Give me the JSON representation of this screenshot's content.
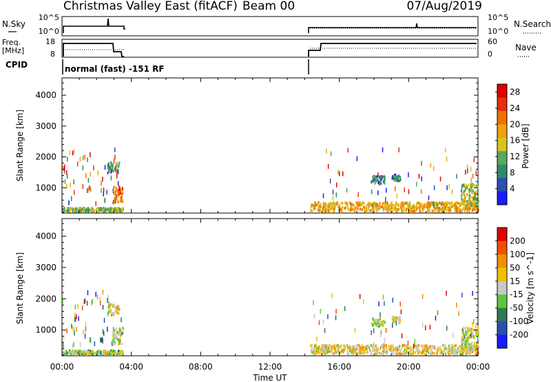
{
  "header": {
    "station": "Christmas Valley East (fitACF)",
    "beam": "Beam 00",
    "date": "07/Aug/2019"
  },
  "panels": {
    "nsky": {
      "label": "N.Sky",
      "ticks": [
        "10^5",
        "10^0"
      ],
      "right_ticks": [
        "10^5",
        "10^0"
      ],
      "right_label": "N.Search"
    },
    "freq": {
      "label_top": "Freq.",
      "label_bottom": "[MHz]",
      "ticks": [
        "18",
        "8"
      ],
      "right_ticks": [
        "60",
        "0"
      ],
      "right_label": "Nave"
    },
    "cpid": {
      "label": "CPID",
      "text": "normal (fast) -151 RF"
    }
  },
  "chart_data": [
    {
      "type": "heatmap",
      "title": "",
      "xlabel": "Time UT",
      "ylabel": "Slant Range [km]",
      "x_ticks": [
        "00:00",
        "04:00",
        "08:00",
        "12:00",
        "16:00",
        "20:00",
        "00:00"
      ],
      "y_ticks": [
        1000,
        2000,
        3000,
        4000
      ],
      "xlim_hours": [
        0,
        24
      ],
      "ylim": [
        180,
        4560
      ],
      "colorbar": {
        "label": "Power [dB]",
        "ticks": [
          "4",
          "8",
          "12",
          "16",
          "20",
          "24",
          "28"
        ],
        "range": [
          0,
          30
        ],
        "colors": [
          "#1a1aff",
          "#2a4fb0",
          "#2e8a6a",
          "#5aa85a",
          "#d8c41a",
          "#f0a010",
          "#f07000",
          "#e63010",
          "#e00000"
        ]
      },
      "data_gap_hours": [
        3.5,
        14.3
      ],
      "clusters": [
        {
          "t": [
            0.0,
            3.5
          ],
          "range": [
            200,
            320
          ],
          "value": 12
        },
        {
          "t": [
            2.9,
            3.5
          ],
          "range": [
            500,
            1050
          ],
          "value": 22
        },
        {
          "t": [
            2.6,
            3.3
          ],
          "range": [
            1450,
            1800
          ],
          "value": 10
        },
        {
          "t": [
            14.3,
            24.0
          ],
          "range": [
            200,
            500
          ],
          "value": 18
        },
        {
          "t": [
            17.8,
            18.6
          ],
          "range": [
            1100,
            1350
          ],
          "value": 8
        },
        {
          "t": [
            19.0,
            19.5
          ],
          "range": [
            1200,
            1400
          ],
          "value": 8
        },
        {
          "t": [
            23.0,
            24.0
          ],
          "range": [
            400,
            1100
          ],
          "value": 14
        }
      ]
    },
    {
      "type": "heatmap",
      "title": "",
      "xlabel": "Time UT",
      "ylabel": "Slant Range [km]",
      "x_ticks": [
        "00:00",
        "04:00",
        "08:00",
        "12:00",
        "16:00",
        "20:00",
        "00:00"
      ],
      "y_ticks": [
        1000,
        2000,
        3000,
        4000
      ],
      "xlim_hours": [
        0,
        24
      ],
      "ylim": [
        180,
        4560
      ],
      "colorbar": {
        "label": "Velocity [m s^-1]",
        "ticks": [
          "200",
          "100",
          "50",
          "15",
          "-15",
          "-50",
          "-100",
          "-200"
        ],
        "range": [
          -250,
          250
        ],
        "colors": [
          "#1a1aff",
          "#2a4fb0",
          "#2e7a50",
          "#5ac83a",
          "#c8c8c8",
          "#f0c000",
          "#f09000",
          "#f05000",
          "#e00000"
        ]
      },
      "data_gap_hours": [
        3.5,
        14.3
      ],
      "clusters": [
        {
          "t": [
            0.0,
            3.5
          ],
          "range": [
            200,
            320
          ],
          "value": -20
        },
        {
          "t": [
            2.9,
            3.5
          ],
          "range": [
            500,
            1050
          ],
          "value": 0
        },
        {
          "t": [
            2.6,
            3.3
          ],
          "range": [
            1450,
            1800
          ],
          "value": 30
        },
        {
          "t": [
            14.3,
            24.0
          ],
          "range": [
            200,
            500
          ],
          "value": 40
        },
        {
          "t": [
            17.8,
            18.6
          ],
          "range": [
            1100,
            1350
          ],
          "value": 0
        },
        {
          "t": [
            19.0,
            19.5
          ],
          "range": [
            1200,
            1400
          ],
          "value": 0
        },
        {
          "t": [
            23.0,
            24.0
          ],
          "range": [
            400,
            1100
          ],
          "value": 0
        }
      ]
    }
  ]
}
